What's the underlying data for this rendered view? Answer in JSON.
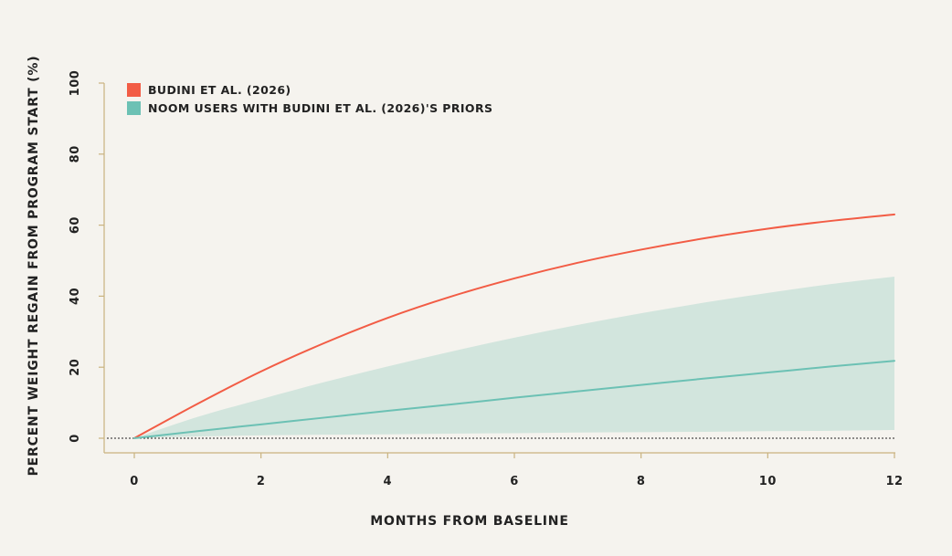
{
  "chart_data": {
    "type": "line",
    "xlabel": "MONTHS FROM BASELINE",
    "ylabel": "PERCENT WEIGHT REGAIN FROM PROGRAM START (%)",
    "xlim": [
      -0.5,
      12
    ],
    "ylim": [
      -4,
      100
    ],
    "xticks": [
      0,
      2,
      4,
      6,
      8,
      10,
      12
    ],
    "yticks": [
      0,
      20,
      40,
      60,
      80,
      100
    ],
    "x": [
      0,
      1,
      2,
      3,
      4,
      5,
      6,
      7,
      8,
      9,
      10,
      11,
      12
    ],
    "series": [
      {
        "name": "BUDINI ET AL. (2026)",
        "color": "#f25c45",
        "values": [
          0,
          9.7,
          18.8,
          26.8,
          33.9,
          39.9,
          45.0,
          49.4,
          53.1,
          56.3,
          59.0,
          61.2,
          63.0
        ]
      },
      {
        "name": "NOOM USERS WITH BUDINI ET AL. (2026)'S PRIORS",
        "color": "#6cc1b4",
        "band_color": "#d2e5dd",
        "values": [
          0,
          2.0,
          3.9,
          5.8,
          7.7,
          9.5,
          11.4,
          13.2,
          15.0,
          16.8,
          18.5,
          20.2,
          21.8
        ],
        "lower": [
          0,
          0.5,
          0.8,
          1.0,
          1.1,
          1.3,
          1.4,
          1.6,
          1.7,
          1.8,
          2.0,
          2.1,
          2.3
        ],
        "upper": [
          0,
          6.0,
          11.0,
          15.8,
          20.2,
          24.4,
          28.3,
          31.9,
          35.2,
          38.2,
          40.9,
          43.4,
          45.5
        ]
      }
    ],
    "reference_line": 0,
    "legend_position": "top-left",
    "grid": false
  }
}
